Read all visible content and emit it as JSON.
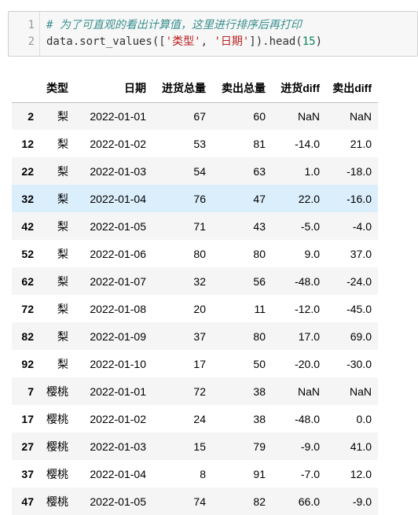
{
  "code_cell": {
    "line_numbers": [
      "1",
      "2"
    ],
    "line1_comment": "# 为了可直观的看出计算值，这里进行排序后再打印",
    "line2_prefix": "data.sort_values([",
    "line2_str1": "'类型'",
    "line2_sep": ", ",
    "line2_str2": "'日期'",
    "line2_mid": "]).head(",
    "line2_num": "15",
    "line2_suffix": ")"
  },
  "table": {
    "index_header": "",
    "columns": [
      "类型",
      "日期",
      "进货总量",
      "卖出总量",
      "进货diff",
      "卖出diff"
    ],
    "hovered_row_index": 3,
    "rows": [
      {
        "index": "2",
        "cells": [
          "梨",
          "2022-01-01",
          "67",
          "60",
          "NaN",
          "NaN"
        ]
      },
      {
        "index": "12",
        "cells": [
          "梨",
          "2022-01-02",
          "53",
          "81",
          "-14.0",
          "21.0"
        ]
      },
      {
        "index": "22",
        "cells": [
          "梨",
          "2022-01-03",
          "54",
          "63",
          "1.0",
          "-18.0"
        ]
      },
      {
        "index": "32",
        "cells": [
          "梨",
          "2022-01-04",
          "76",
          "47",
          "22.0",
          "-16.0"
        ]
      },
      {
        "index": "42",
        "cells": [
          "梨",
          "2022-01-05",
          "71",
          "43",
          "-5.0",
          "-4.0"
        ]
      },
      {
        "index": "52",
        "cells": [
          "梨",
          "2022-01-06",
          "80",
          "80",
          "9.0",
          "37.0"
        ]
      },
      {
        "index": "62",
        "cells": [
          "梨",
          "2022-01-07",
          "32",
          "56",
          "-48.0",
          "-24.0"
        ]
      },
      {
        "index": "72",
        "cells": [
          "梨",
          "2022-01-08",
          "20",
          "11",
          "-12.0",
          "-45.0"
        ]
      },
      {
        "index": "82",
        "cells": [
          "梨",
          "2022-01-09",
          "37",
          "80",
          "17.0",
          "69.0"
        ]
      },
      {
        "index": "92",
        "cells": [
          "梨",
          "2022-01-10",
          "17",
          "50",
          "-20.0",
          "-30.0"
        ]
      },
      {
        "index": "7",
        "cells": [
          "樱桃",
          "2022-01-01",
          "72",
          "38",
          "NaN",
          "NaN"
        ]
      },
      {
        "index": "17",
        "cells": [
          "樱桃",
          "2022-01-02",
          "24",
          "38",
          "-48.0",
          "0.0"
        ]
      },
      {
        "index": "27",
        "cells": [
          "樱桃",
          "2022-01-03",
          "15",
          "79",
          "-9.0",
          "41.0"
        ]
      },
      {
        "index": "37",
        "cells": [
          "樱桃",
          "2022-01-04",
          "8",
          "91",
          "-7.0",
          "12.0"
        ]
      },
      {
        "index": "47",
        "cells": [
          "樱桃",
          "2022-01-05",
          "74",
          "82",
          "66.0",
          "-9.0"
        ]
      }
    ]
  },
  "colors": {
    "row_stripe": "#f5f5f5",
    "row_hover": "#dbeefb",
    "comment": "#3a8f8f",
    "string": "#ba2121",
    "number": "#098658"
  }
}
